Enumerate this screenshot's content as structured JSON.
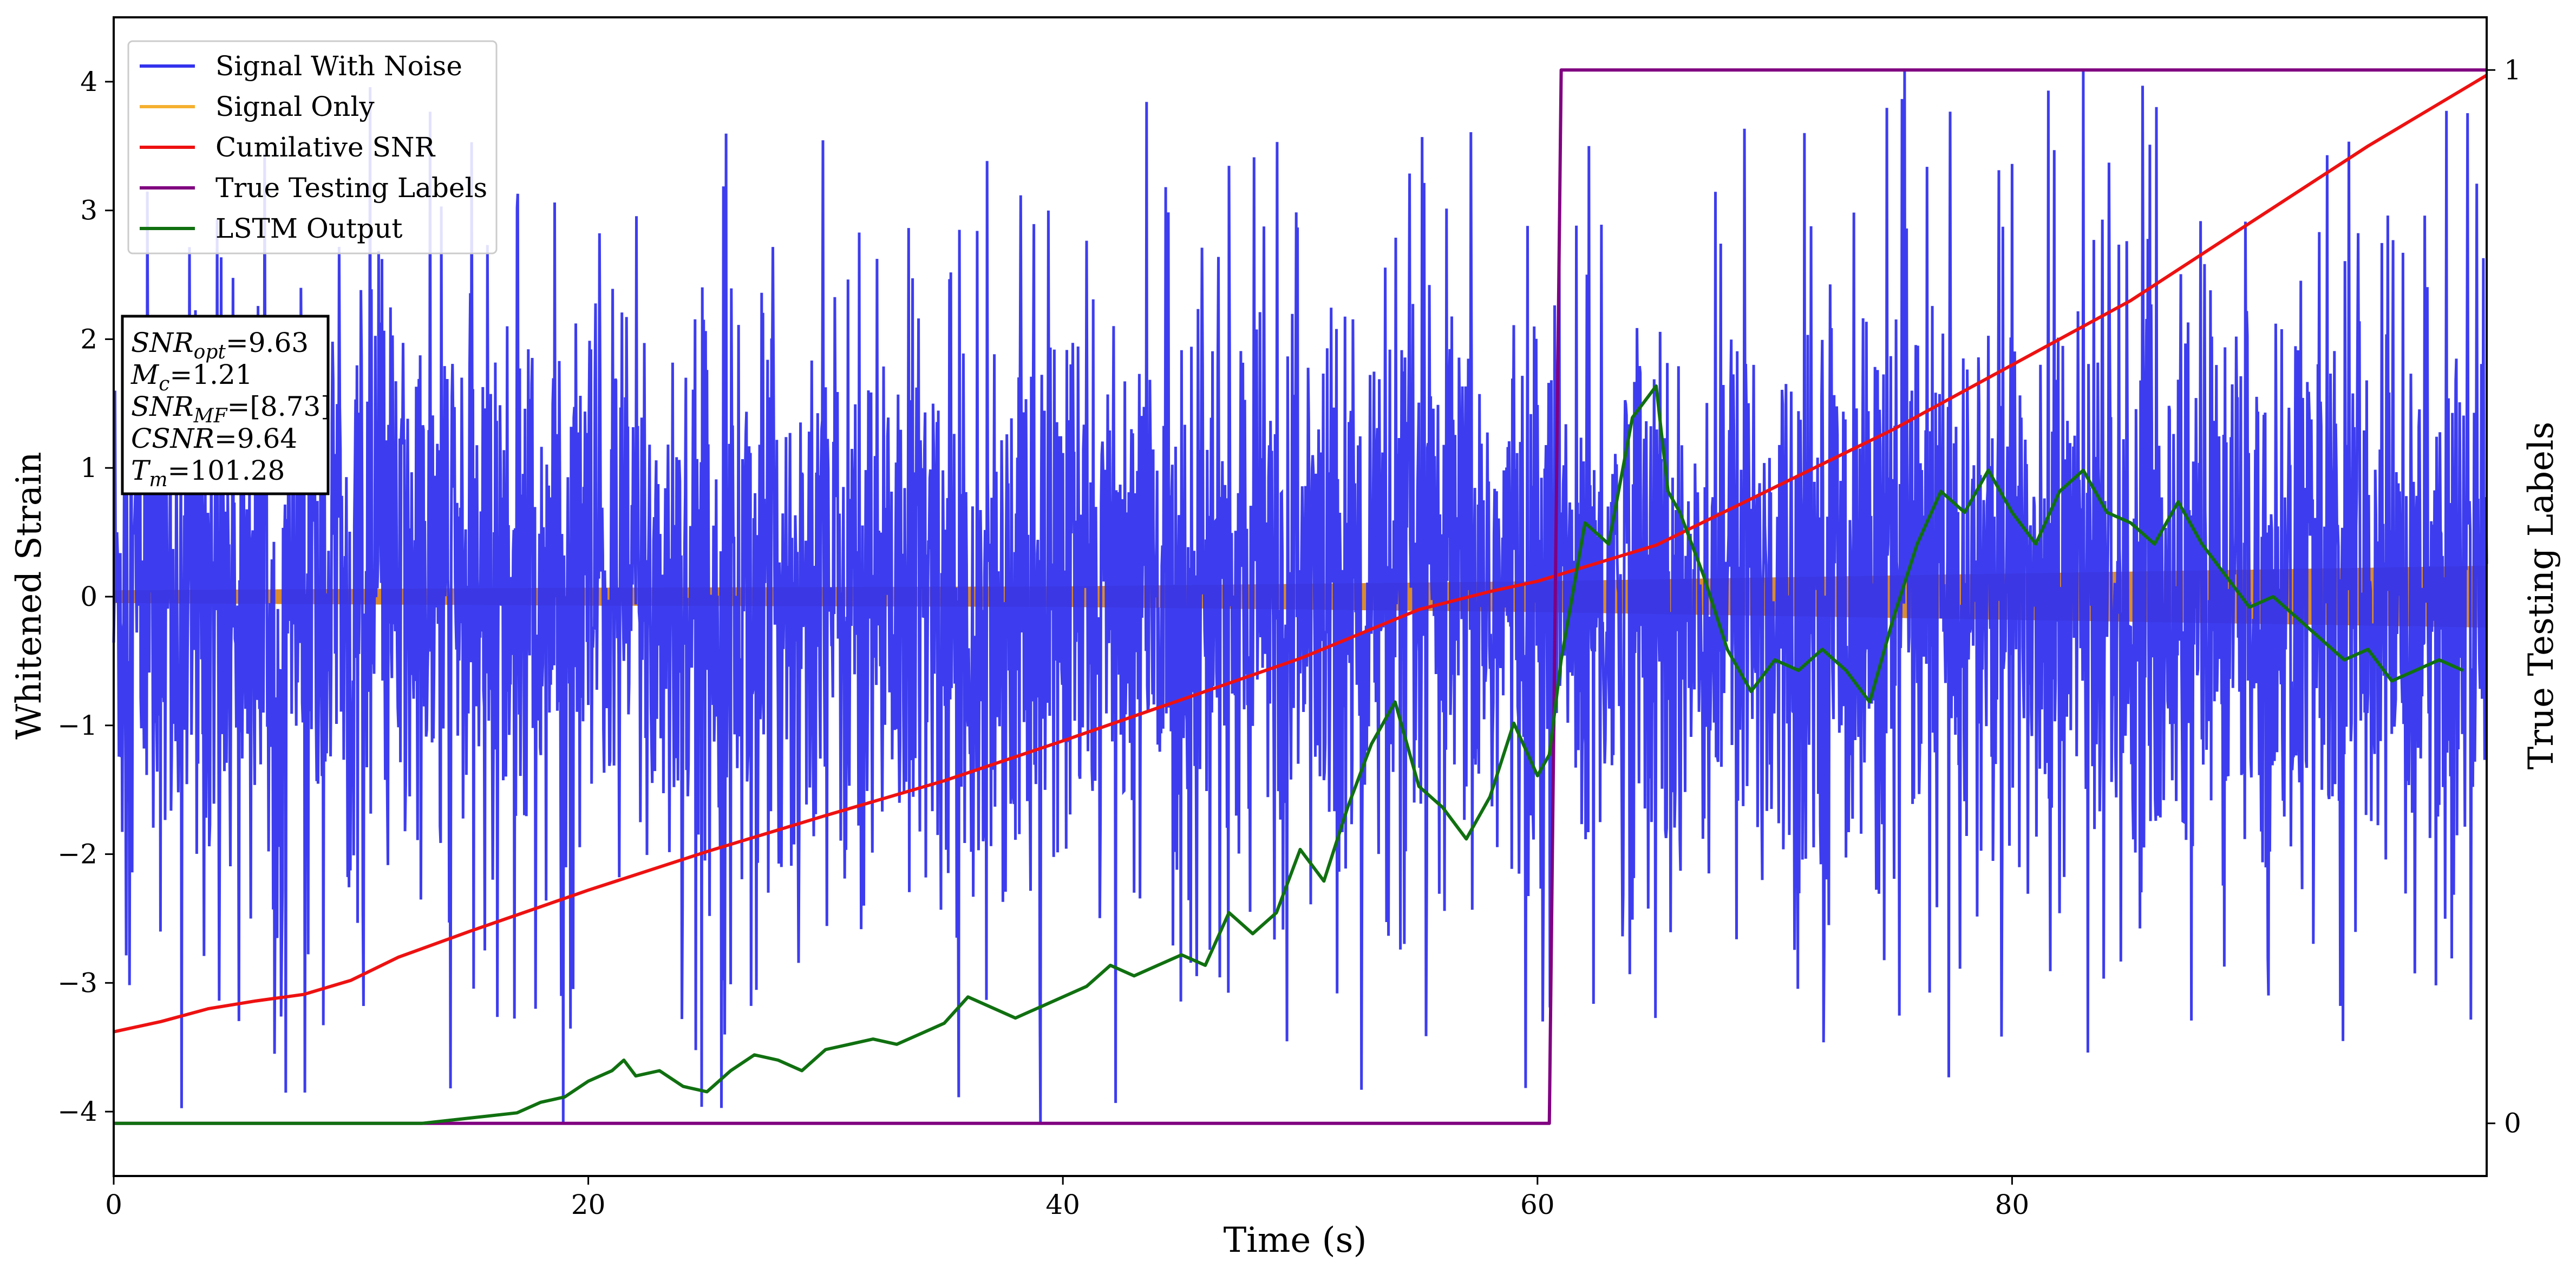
{
  "chart_data": {
    "type": "line",
    "xlabel": "Time (s)",
    "ylabel": "Whitened Strain",
    "y2label": "True Testing Labels",
    "xlim": [
      0,
      100
    ],
    "ylim": [
      -4.5,
      4.5
    ],
    "y2lim": [
      -0.05,
      1.05
    ],
    "x_ticks": [
      "0",
      "20",
      "40",
      "60",
      "80"
    ],
    "x_tick_values": [
      0,
      20,
      40,
      60,
      80
    ],
    "y_ticks": [
      "4",
      "3",
      "2",
      "1",
      "0",
      "−1",
      "−2",
      "−3",
      "−4"
    ],
    "y_tick_values": [
      4,
      3,
      2,
      1,
      0,
      -1,
      -2,
      -3,
      -4
    ],
    "y2_ticks": [
      "1",
      "0"
    ],
    "y2_tick_values": [
      1,
      0
    ],
    "grid": false,
    "legend_position": "top-left",
    "legend": [
      {
        "label": "Signal With Noise",
        "color": "#3333ee"
      },
      {
        "label": "Signal Only",
        "color": "#f5b030"
      },
      {
        "label": "Cumilative SNR",
        "color": "#ee1111"
      },
      {
        "label": "True Testing Labels",
        "color": "#800080"
      },
      {
        "label": "LSTM Output",
        "color": "#107010"
      }
    ],
    "info_box": [
      {
        "sym": "SNR",
        "sub": "opt",
        "value": "=9.63"
      },
      {
        "sym": "M",
        "sub": "c",
        "value": "=1.21"
      },
      {
        "sym": "SNR",
        "sub": "MF",
        "value": "=[8.73]"
      },
      {
        "sym": "CSNR",
        "sub": "",
        "value": "=9.64"
      },
      {
        "sym": "T",
        "sub": "m",
        "value": "=101.28"
      }
    ],
    "series": [
      {
        "name": "Signal With Noise",
        "axis": "left",
        "color": "#3333ee",
        "summary": {
          "typical_abs_amplitude": 1.6,
          "max": 4.1,
          "min": -4.1
        }
      },
      {
        "name": "Signal Only",
        "axis": "left",
        "color": "#d98c30",
        "envelope": {
          "x": [
            0,
            20,
            40,
            60,
            80,
            100
          ],
          "half_width": [
            0.05,
            0.07,
            0.08,
            0.12,
            0.18,
            0.24
          ]
        }
      },
      {
        "name": "Cumilative SNR",
        "axis": "left",
        "color": "#ee1111",
        "x": [
          0,
          2,
          4,
          6,
          8,
          10,
          12,
          15,
          20,
          25,
          30,
          35,
          40,
          45,
          50,
          55,
          58,
          60,
          65,
          70,
          75,
          80,
          85,
          90,
          95,
          100
        ],
        "y": [
          -3.38,
          -3.3,
          -3.2,
          -3.14,
          -3.09,
          -2.98,
          -2.8,
          -2.6,
          -2.28,
          -1.98,
          -1.7,
          -1.43,
          -1.12,
          -0.8,
          -0.48,
          -0.1,
          0.04,
          0.12,
          0.4,
          0.85,
          1.3,
          1.8,
          2.3,
          2.9,
          3.5,
          4.05
        ]
      },
      {
        "name": "True Testing Labels",
        "axis": "right",
        "color": "#800080",
        "x": [
          0,
          60.5,
          61.0,
          100
        ],
        "y": [
          0,
          0,
          1,
          1
        ]
      },
      {
        "name": "LSTM Output",
        "axis": "right",
        "color": "#107010",
        "x": [
          0,
          13,
          15,
          17,
          18,
          19,
          20,
          21,
          21.5,
          22,
          23,
          24,
          25,
          26,
          27,
          28,
          29,
          30,
          31,
          32,
          33,
          34,
          35,
          36,
          37,
          38,
          39,
          40,
          41,
          42,
          43,
          44,
          45,
          46,
          47,
          48,
          49,
          50,
          51,
          52,
          53,
          54,
          55,
          56,
          57,
          58,
          59,
          60,
          60.5,
          61,
          62,
          63,
          64,
          65,
          65.5,
          66,
          67,
          68,
          69,
          70,
          71,
          72,
          73,
          74,
          75,
          76,
          77,
          78,
          79,
          80,
          81,
          82,
          83,
          84,
          85,
          86,
          87,
          88,
          89,
          90,
          91,
          92,
          93,
          94,
          95,
          96,
          97,
          98,
          99
        ],
        "y": [
          0.0,
          0.0,
          0.005,
          0.01,
          0.02,
          0.025,
          0.04,
          0.05,
          0.06,
          0.045,
          0.05,
          0.035,
          0.03,
          0.05,
          0.065,
          0.06,
          0.05,
          0.07,
          0.075,
          0.08,
          0.075,
          0.085,
          0.095,
          0.12,
          0.11,
          0.1,
          0.11,
          0.12,
          0.13,
          0.15,
          0.14,
          0.15,
          0.16,
          0.15,
          0.2,
          0.18,
          0.2,
          0.26,
          0.23,
          0.3,
          0.36,
          0.4,
          0.32,
          0.3,
          0.27,
          0.31,
          0.38,
          0.33,
          0.35,
          0.44,
          0.57,
          0.55,
          0.67,
          0.7,
          0.6,
          0.58,
          0.52,
          0.45,
          0.41,
          0.44,
          0.43,
          0.45,
          0.43,
          0.4,
          0.48,
          0.55,
          0.6,
          0.58,
          0.62,
          0.58,
          0.55,
          0.6,
          0.62,
          0.58,
          0.57,
          0.55,
          0.59,
          0.55,
          0.52,
          0.49,
          0.5,
          0.48,
          0.46,
          0.44,
          0.45,
          0.42,
          0.43,
          0.44,
          0.43
        ]
      }
    ]
  }
}
